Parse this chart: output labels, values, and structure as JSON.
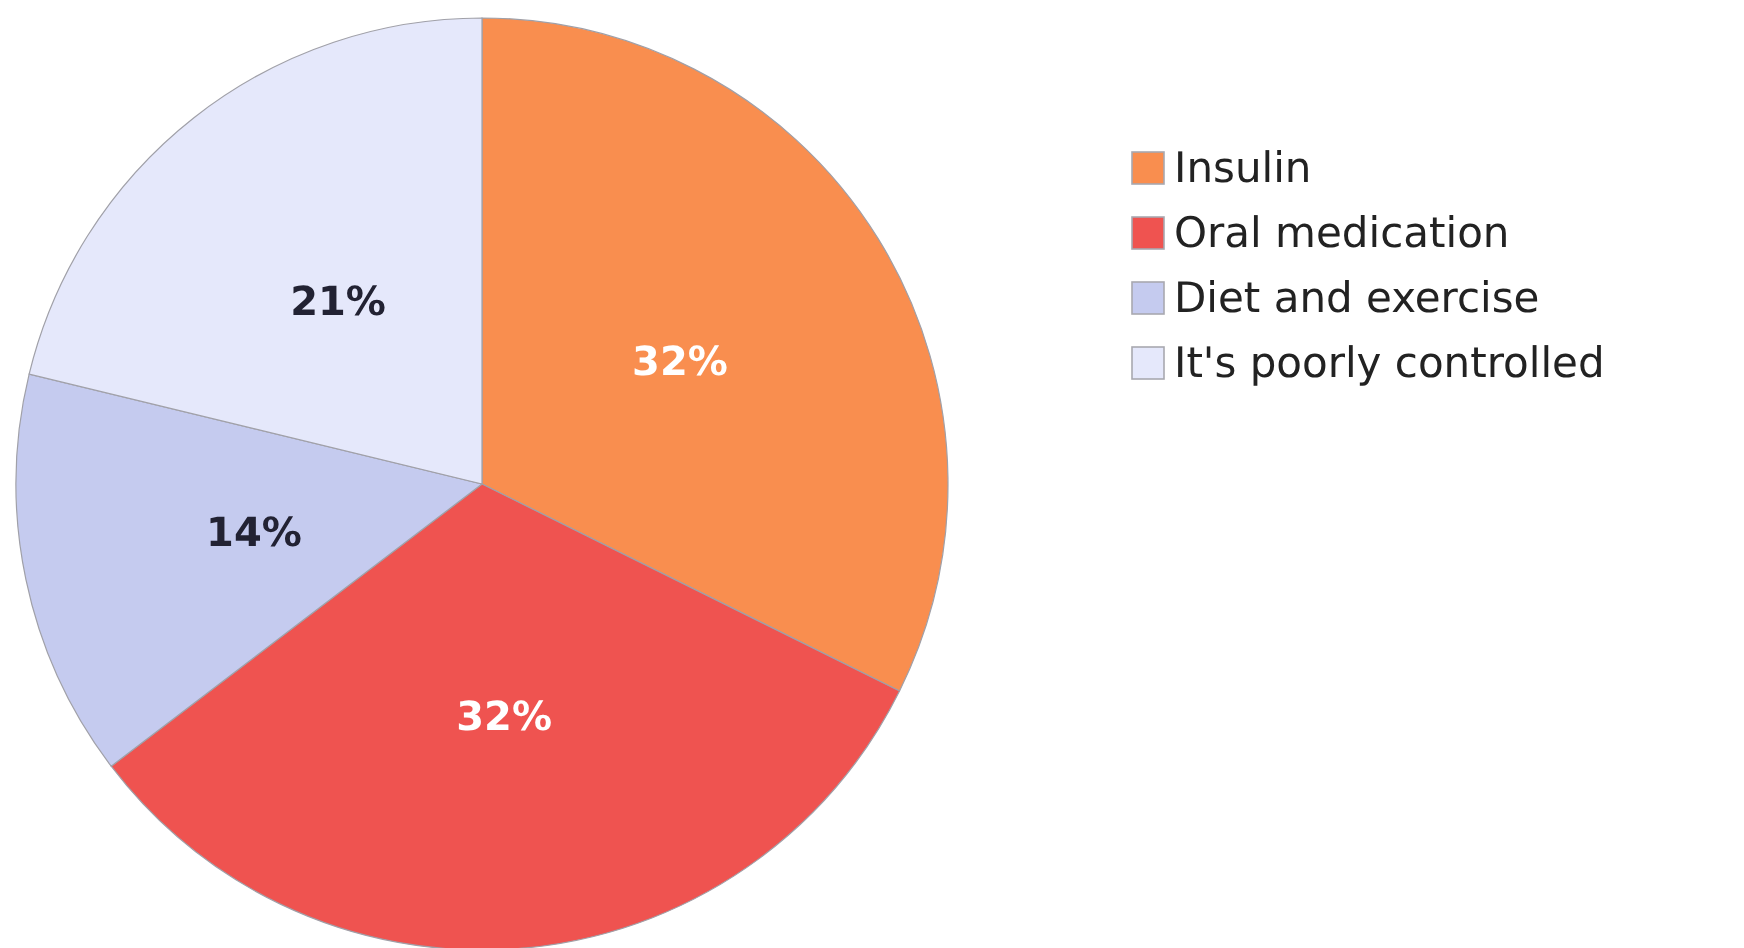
{
  "chart_data": {
    "type": "pie",
    "categories": [
      "Insulin",
      "Oral medication",
      "Diet and exercise",
      "It's poorly controlled"
    ],
    "values": [
      32,
      32,
      14,
      21
    ],
    "colors": [
      "#f98e4f",
      "#ef5350",
      "#c5cbef",
      "#e5e8fb"
    ],
    "value_labels": [
      "32%",
      "32%",
      "14%",
      "21%"
    ],
    "legend": "right"
  }
}
